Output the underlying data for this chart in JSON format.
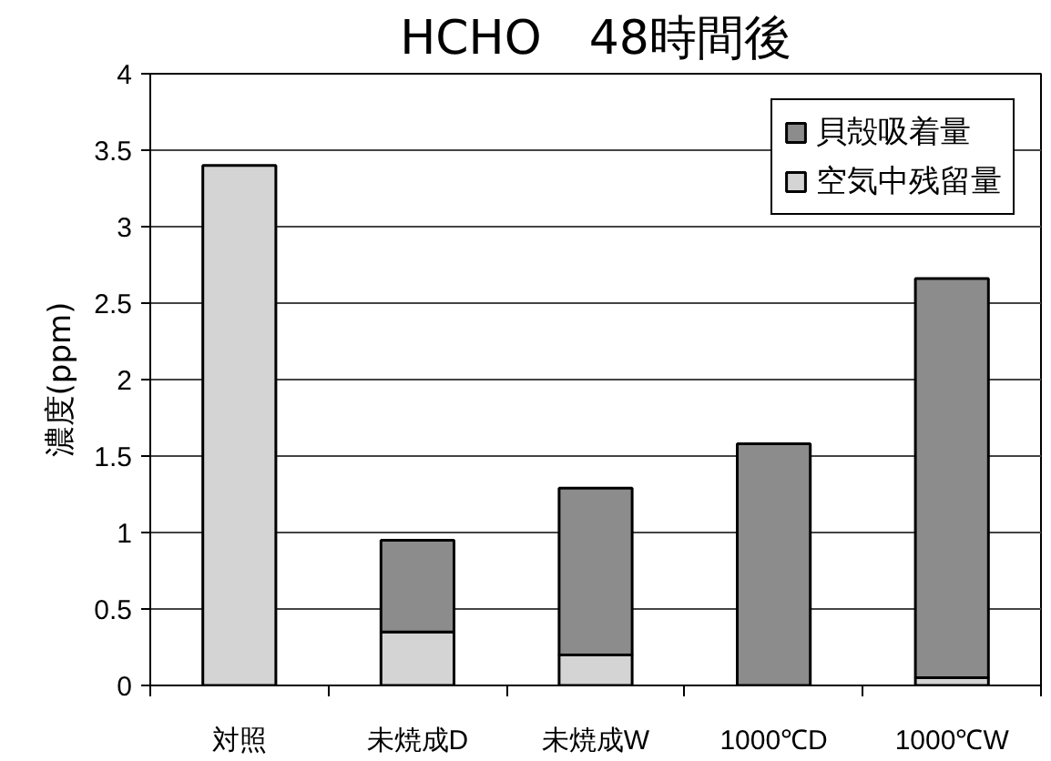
{
  "chart_data": {
    "type": "bar",
    "title": "HCHO　48時間後",
    "ylabel": "濃度(ppm)",
    "categories": [
      "対照",
      "未焼成D",
      "未焼成W",
      "1000℃D",
      "1000℃W"
    ],
    "stacked": true,
    "series": [
      {
        "name": "空気中残留量",
        "color": "#d4d4d4",
        "values": [
          3.4,
          0.35,
          0.2,
          null,
          0.05
        ]
      },
      {
        "name": "貝殻吸着量",
        "color": "#8c8c8c",
        "values": [
          null,
          0.6,
          1.09,
          1.58,
          2.61
        ]
      }
    ],
    "ylim": [
      0,
      4
    ],
    "yticks": [
      0,
      0.5,
      1,
      1.5,
      2,
      2.5,
      3,
      3.5,
      4
    ],
    "grid": "y",
    "legend": "top right"
  }
}
